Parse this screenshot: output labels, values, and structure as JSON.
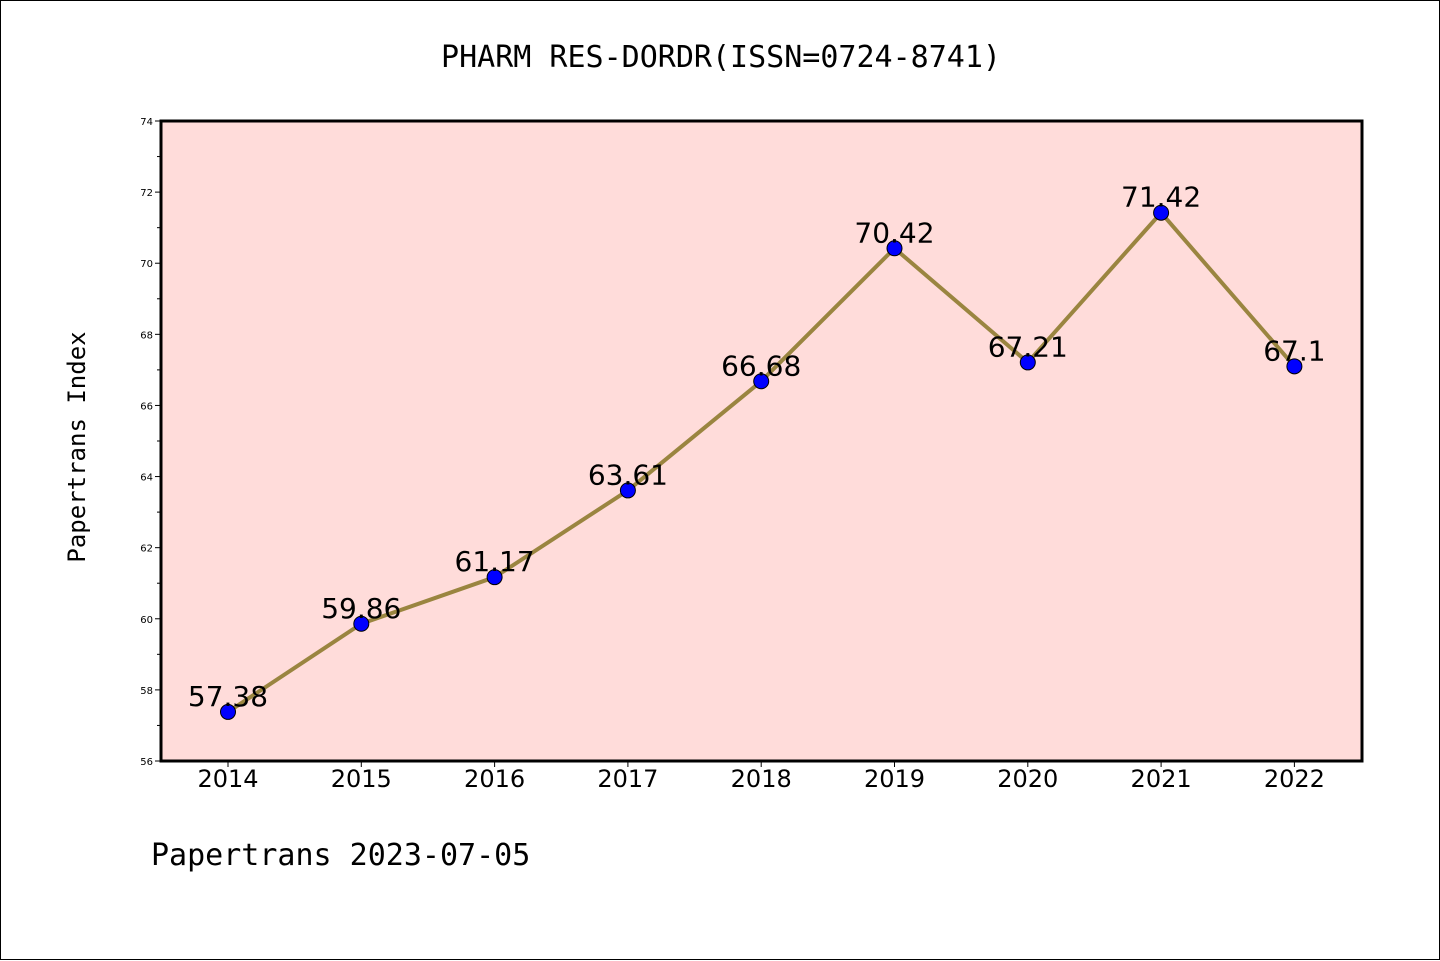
{
  "chart_data": {
    "type": "line",
    "title": "PHARM RES-DORDR(ISSN=0724-8741)",
    "ylabel": "Papertrans Index",
    "xlabel": "",
    "footer": "Papertrans 2023-07-05",
    "categories": [
      "2014",
      "2015",
      "2016",
      "2017",
      "2018",
      "2019",
      "2020",
      "2021",
      "2022"
    ],
    "series": [
      {
        "values": [
          57.38,
          59.86,
          61.17,
          63.61,
          66.68,
          70.42,
          67.21,
          71.42,
          67.1
        ]
      }
    ],
    "data_labels": [
      "57.38",
      "59.86",
      "61.17",
      "63.61",
      "66.68",
      "70.42",
      "67.21",
      "71.42",
      "67.1"
    ],
    "ylim": [
      56,
      74
    ],
    "yticks": [
      56,
      58,
      60,
      62,
      64,
      66,
      68,
      70,
      72,
      74
    ],
    "grid": false,
    "colors": {
      "plot_background": "#FFDCDA",
      "line": "#9A8540",
      "marker": "#0000FF"
    }
  }
}
